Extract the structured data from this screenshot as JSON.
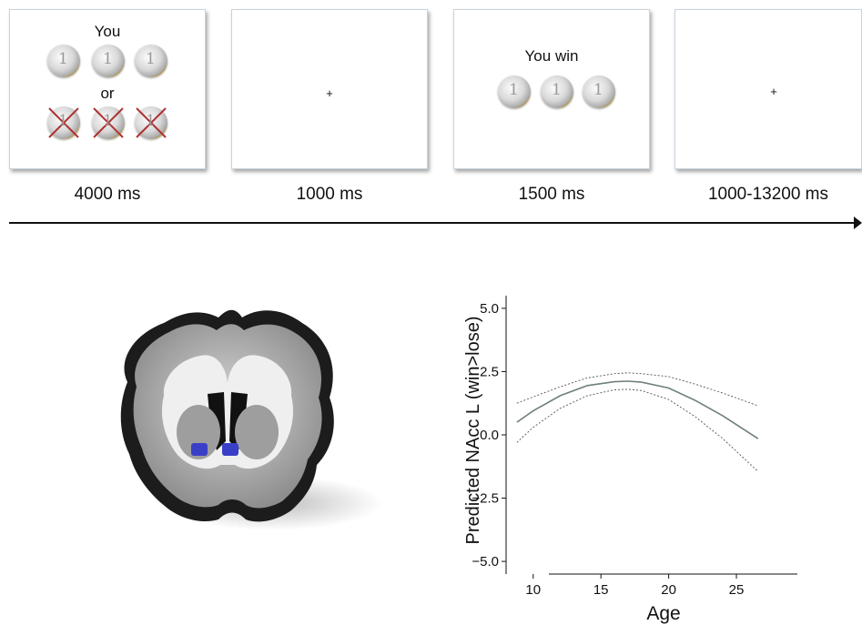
{
  "trial": {
    "frames": [
      {
        "line1": "You",
        "line2": "or",
        "duration": "4000 ms"
      },
      {
        "fixation": "+",
        "duration": "1000 ms"
      },
      {
        "text": "You win",
        "duration": "1500 ms"
      },
      {
        "fixation": "+",
        "duration": "1000-13200 ms"
      }
    ]
  },
  "brain": {
    "highlight_color": "#3a3fc8"
  },
  "chart_data": {
    "type": "line",
    "xlabel": "Age",
    "ylabel": "Predicted NAcc L (win>lose)",
    "xlim": [
      8,
      29.5
    ],
    "ylim": [
      -5.5,
      5.5
    ],
    "xticks": [
      10,
      15,
      20,
      25
    ],
    "yticks": [
      5.0,
      2.5,
      0.0,
      -2.5,
      -5.0
    ],
    "ytick_labels": [
      "5.0",
      "2.5",
      "0.0",
      "−2.5",
      "−5.0"
    ],
    "series": [
      {
        "role": "fit",
        "style": "solid",
        "color": "#6f7f7d",
        "x": [
          8.8,
          10,
          12,
          14,
          16,
          17,
          18,
          20,
          22,
          24,
          26.6
        ],
        "y": [
          0.5,
          0.95,
          1.55,
          1.95,
          2.1,
          2.12,
          2.08,
          1.85,
          1.35,
          0.75,
          -0.15
        ]
      },
      {
        "role": "upper",
        "style": "dashed",
        "color": "#555555",
        "x": [
          8.8,
          10,
          12,
          14,
          16,
          17,
          18,
          20,
          22,
          24,
          26.6
        ],
        "y": [
          1.25,
          1.5,
          1.9,
          2.25,
          2.42,
          2.45,
          2.42,
          2.3,
          2.0,
          1.65,
          1.15
        ]
      },
      {
        "role": "lower",
        "style": "dashed",
        "color": "#555555",
        "x": [
          8.8,
          10,
          12,
          14,
          16,
          17,
          18,
          20,
          22,
          24,
          26.6
        ],
        "y": [
          -0.3,
          0.3,
          1.05,
          1.55,
          1.78,
          1.8,
          1.75,
          1.4,
          0.7,
          -0.15,
          -1.45
        ]
      }
    ]
  }
}
